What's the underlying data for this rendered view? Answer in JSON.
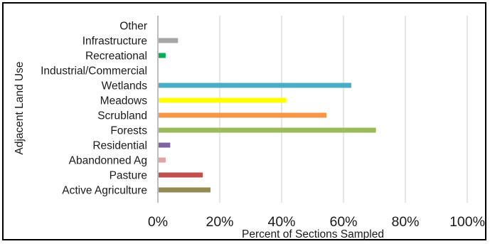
{
  "chart_data": {
    "type": "bar",
    "orientation": "horizontal",
    "title": "",
    "xlabel": "Percent of Sections Sampled",
    "ylabel": "Adjacent Land Use",
    "xlim": [
      0,
      100
    ],
    "x_ticks": [
      0,
      20,
      40,
      60,
      80,
      100
    ],
    "x_tick_labels": [
      "0%",
      "20%",
      "40%",
      "60%",
      "80%",
      "100%"
    ],
    "grid": "vertical",
    "legend": "none",
    "categories": [
      "Other",
      "Infrastructure",
      "Recreational",
      "Industrial/Commercial",
      "Wetlands",
      "Meadows",
      "Scrubland",
      "Forests",
      "Residential",
      "Abandonned Ag",
      "Pasture",
      "Active Agriculture"
    ],
    "values": [
      0,
      6.5,
      2.5,
      0,
      62.5,
      41.5,
      54.5,
      70.5,
      4,
      2.5,
      14.5,
      17
    ],
    "colors": [
      "#a6a6a6",
      "#a6a6a6",
      "#00b050",
      "#808080",
      "#4bacc6",
      "#ffff00",
      "#f79646",
      "#9bbb59",
      "#8064a2",
      "#e6a0a0",
      "#c0504d",
      "#948a54"
    ]
  }
}
